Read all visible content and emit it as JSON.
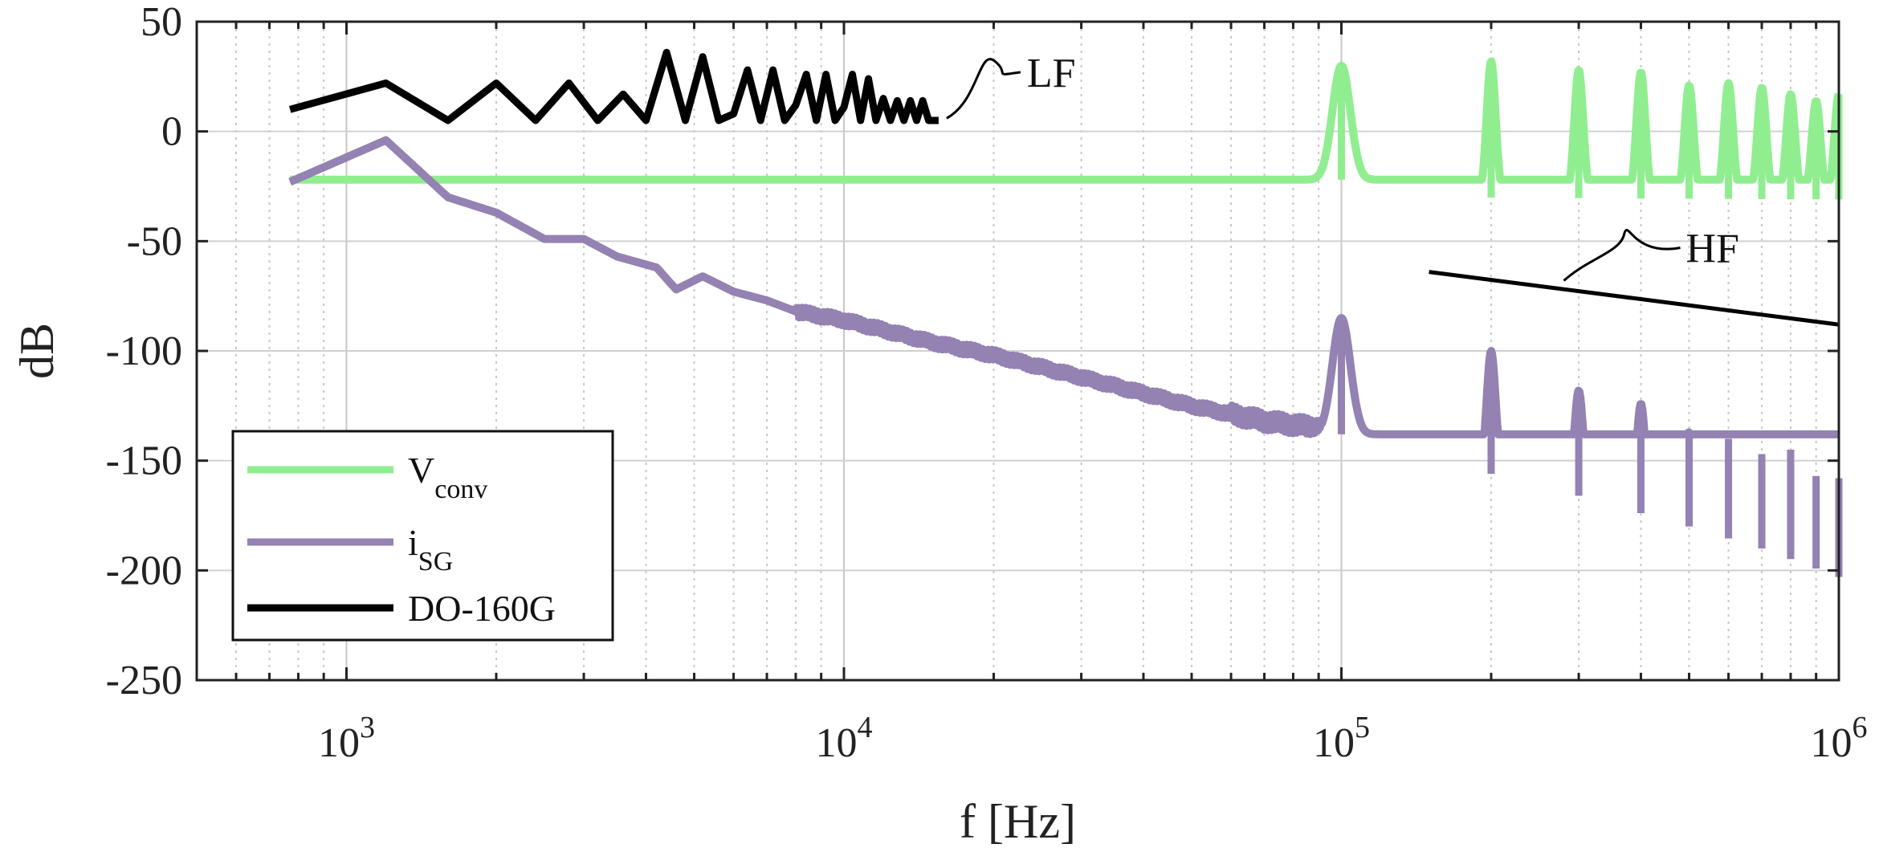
{
  "chart_data": {
    "type": "line",
    "title": "",
    "xlabel": "f [Hz]",
    "ylabel": "dB",
    "xscale": "log",
    "xlim": [
      500,
      1000000
    ],
    "ylim": [
      -250,
      50
    ],
    "y_ticks": [
      -250,
      -200,
      -150,
      -100,
      -50,
      0,
      50
    ],
    "y_tick_labels": [
      "-250",
      "-200",
      "-150",
      "-100",
      "-50",
      "0",
      "50"
    ],
    "x_ticks": [
      {
        "base": "10",
        "exp": "3",
        "value": 1000
      },
      {
        "base": "10",
        "exp": "4",
        "value": 10000
      },
      {
        "base": "10",
        "exp": "5",
        "value": 100000
      },
      {
        "base": "10",
        "exp": "6",
        "value": 1000000
      }
    ],
    "grid": true,
    "legend_position": "bottom-left",
    "series": [
      {
        "name": "V_conv",
        "legend_main": "V",
        "legend_sub": "conv",
        "color": "#90EE90",
        "baseline": [
          [
            770,
            -31
          ],
          [
            1200,
            -29
          ],
          [
            1600,
            -30
          ],
          [
            2000,
            -28
          ],
          [
            2400,
            -34
          ],
          [
            2800,
            -29
          ],
          [
            3200,
            -31
          ],
          [
            3600,
            -30
          ],
          [
            4000,
            -28
          ],
          [
            4600,
            -36
          ],
          [
            5200,
            -31
          ],
          [
            6000,
            -30
          ],
          [
            7000,
            -31
          ],
          [
            8500,
            -30
          ],
          [
            10000,
            -31
          ],
          [
            20000,
            -31
          ],
          [
            40000,
            -31
          ],
          [
            70000,
            -30
          ],
          [
            85000,
            -27
          ],
          [
            95000,
            -22
          ],
          [
            100000,
            -22
          ],
          [
            110000,
            -25
          ],
          [
            150000,
            -30
          ],
          [
            1000000,
            -31
          ]
        ],
        "peaks": [
          {
            "f": 100000,
            "db": 30
          },
          {
            "f": 200000,
            "db": 32
          },
          {
            "f": 300000,
            "db": 28
          },
          {
            "f": 400000,
            "db": 27
          },
          {
            "f": 500000,
            "db": 21
          },
          {
            "f": 600000,
            "db": 22
          },
          {
            "f": 700000,
            "db": 20
          },
          {
            "f": 800000,
            "db": 17
          },
          {
            "f": 900000,
            "db": 14
          },
          {
            "f": 1000000,
            "db": 17
          }
        ]
      },
      {
        "name": "i_SG",
        "legend_main": "i",
        "legend_sub": "SG",
        "color": "#9382B2",
        "baseline": [
          [
            770,
            -23
          ],
          [
            1200,
            -4
          ],
          [
            1600,
            -30
          ],
          [
            2000,
            -37
          ],
          [
            2500,
            -49
          ],
          [
            3000,
            -49
          ],
          [
            3500,
            -57
          ],
          [
            4200,
            -62
          ],
          [
            4600,
            -72
          ],
          [
            5200,
            -66
          ],
          [
            6000,
            -73
          ],
          [
            7000,
            -77
          ],
          [
            8000,
            -82
          ],
          [
            10000,
            -86
          ],
          [
            15000,
            -96
          ],
          [
            20000,
            -102
          ],
          [
            30000,
            -112
          ],
          [
            50000,
            -125
          ],
          [
            70000,
            -132
          ],
          [
            90000,
            -135
          ],
          [
            100000,
            -138
          ],
          [
            150000,
            -150
          ],
          [
            200000,
            -156
          ],
          [
            300000,
            -166
          ],
          [
            500000,
            -180
          ],
          [
            700000,
            -190
          ],
          [
            1000000,
            -203
          ]
        ],
        "peaks": [
          {
            "f": 100000,
            "db": -85
          },
          {
            "f": 200000,
            "db": -100
          },
          {
            "f": 300000,
            "db": -118
          },
          {
            "f": 400000,
            "db": -124
          },
          {
            "f": 500000,
            "db": -137
          },
          {
            "f": 600000,
            "db": -140
          },
          {
            "f": 700000,
            "db": -147
          },
          {
            "f": 800000,
            "db": -145
          },
          {
            "f": 900000,
            "db": -157
          },
          {
            "f": 1000000,
            "db": -158
          }
        ]
      },
      {
        "name": "DO-160G",
        "legend_main": "DO-160G",
        "legend_sub": "",
        "color": "#000000",
        "segments": [
          {
            "label": "LF",
            "points": [
              [
                770,
                10
              ],
              [
                1200,
                22
              ],
              [
                1600,
                5
              ],
              [
                2000,
                22
              ],
              [
                2400,
                5
              ],
              [
                2800,
                22
              ],
              [
                3200,
                5
              ],
              [
                3600,
                17
              ],
              [
                4000,
                5
              ],
              [
                4400,
                36
              ],
              [
                4800,
                5
              ],
              [
                5200,
                34
              ],
              [
                5600,
                5
              ],
              [
                6000,
                8
              ],
              [
                6400,
                28
              ],
              [
                6800,
                5
              ],
              [
                7200,
                28
              ],
              [
                7600,
                5
              ],
              [
                8000,
                12
              ],
              [
                8400,
                26
              ],
              [
                8800,
                5
              ],
              [
                9200,
                26
              ],
              [
                9600,
                5
              ],
              [
                10000,
                11
              ],
              [
                10400,
                26
              ],
              [
                10800,
                5
              ],
              [
                11200,
                24
              ],
              [
                11600,
                5
              ],
              [
                12000,
                15
              ],
              [
                12400,
                5
              ],
              [
                12800,
                14
              ],
              [
                13200,
                5
              ],
              [
                13600,
                14
              ],
              [
                14000,
                5
              ],
              [
                14400,
                14
              ],
              [
                14800,
                5
              ],
              [
                15500,
                5
              ]
            ]
          },
          {
            "label": "HF",
            "points": [
              [
                150000,
                -64
              ],
              [
                1000000,
                -88
              ]
            ]
          }
        ]
      }
    ],
    "annotations": [
      {
        "text": "LF",
        "target": "DO-160G low-frequency limit"
      },
      {
        "text": "HF",
        "target": "DO-160G high-frequency limit"
      }
    ]
  }
}
